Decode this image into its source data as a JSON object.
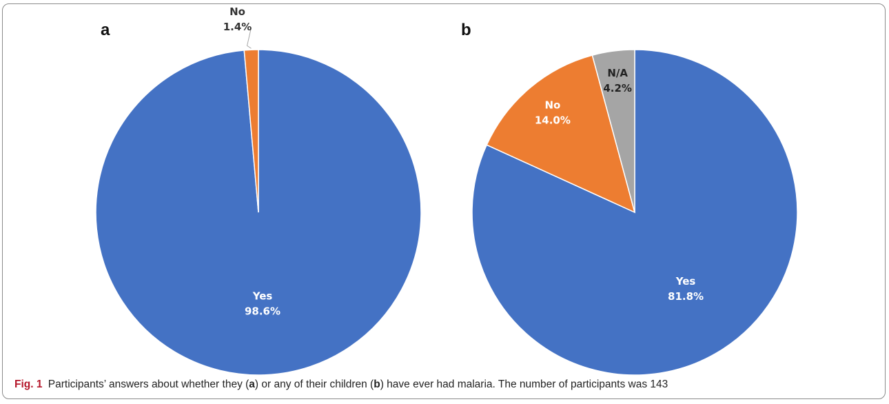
{
  "chart_data": [
    {
      "type": "pie",
      "panel": "a",
      "categories": [
        "Yes",
        "No"
      ],
      "values": [
        98.6,
        1.4
      ],
      "labels": [
        "98.6%",
        "1.4%"
      ],
      "colors": [
        "#4472c4",
        "#ed7d31"
      ],
      "label_colors": [
        "#ffffff",
        "#333333"
      ],
      "start_angle_deg": 0,
      "direction": "clockwise"
    },
    {
      "type": "pie",
      "panel": "b",
      "categories": [
        "Yes",
        "No",
        "N/A"
      ],
      "values": [
        81.8,
        14.0,
        4.2
      ],
      "labels": [
        "81.8%",
        "14.0%",
        "4.2%"
      ],
      "colors": [
        "#4472c4",
        "#ed7d31",
        "#a5a5a5"
      ],
      "label_colors": [
        "#ffffff",
        "#ffffff",
        "#222222"
      ],
      "start_angle_deg": 0,
      "direction": "clockwise"
    }
  ],
  "caption": {
    "fig_label": "Fig. 1",
    "text_1": "Participants’ answers about whether they (",
    "ref_a": "a",
    "text_2": ") or any of their children (",
    "ref_b": "b",
    "text_3": ") have ever had malaria. The number of participants was 143"
  }
}
